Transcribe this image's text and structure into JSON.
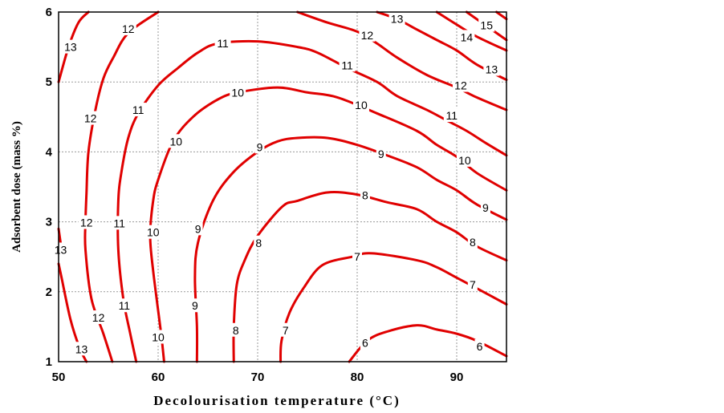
{
  "chart_data": {
    "type": "contour",
    "xlabel": "Decolourisation temperature (°C)",
    "ylabel": "Adsorbent dose (mass %)",
    "xlim": [
      50,
      95
    ],
    "ylim": [
      1,
      6
    ],
    "xticks": [
      "50",
      "60",
      "70",
      "80",
      "90"
    ],
    "yticks": [
      "1",
      "2",
      "3",
      "4",
      "5",
      "6"
    ],
    "grid": true,
    "line_color": "#e00000",
    "contours": [
      {
        "level": "6",
        "points": [
          [
            79.2,
            1.0
          ],
          [
            81,
            1.3
          ],
          [
            83,
            1.43
          ],
          [
            86,
            1.52
          ],
          [
            88,
            1.46
          ],
          [
            90,
            1.4
          ],
          [
            92,
            1.3
          ],
          [
            95,
            1.08
          ]
        ],
        "labels": [
          [
            80.8,
            1.27
          ],
          [
            92.3,
            1.22
          ]
        ]
      },
      {
        "level": "7",
        "points": [
          [
            72.3,
            1.0
          ],
          [
            72.4,
            1.3
          ],
          [
            73.2,
            1.7
          ],
          [
            74.6,
            2.05
          ],
          [
            76.5,
            2.38
          ],
          [
            79.5,
            2.5
          ],
          [
            81.5,
            2.55
          ],
          [
            86,
            2.45
          ],
          [
            88,
            2.35
          ],
          [
            90,
            2.2
          ],
          [
            92,
            2.05
          ],
          [
            95,
            1.82
          ]
        ],
        "labels": [
          [
            72.8,
            1.45
          ],
          [
            80.0,
            2.5
          ],
          [
            91.6,
            2.1
          ]
        ]
      },
      {
        "level": "8",
        "points": [
          [
            67.6,
            1.0
          ],
          [
            67.6,
            1.5
          ],
          [
            67.9,
            2.1
          ],
          [
            68.7,
            2.45
          ],
          [
            70.0,
            2.8
          ],
          [
            72.5,
            3.22
          ],
          [
            74,
            3.3
          ],
          [
            77,
            3.42
          ],
          [
            80,
            3.39
          ],
          [
            83,
            3.28
          ],
          [
            86,
            3.18
          ],
          [
            88,
            3.0
          ],
          [
            90,
            2.85
          ],
          [
            92,
            2.65
          ],
          [
            95,
            2.45
          ]
        ],
        "labels": [
          [
            67.8,
            1.45
          ],
          [
            70.1,
            2.7
          ],
          [
            80.8,
            3.38
          ],
          [
            91.6,
            2.71
          ]
        ]
      },
      {
        "level": "9",
        "points": [
          [
            63.9,
            1.0
          ],
          [
            63.9,
            1.5
          ],
          [
            63.7,
            2.2
          ],
          [
            64.0,
            2.7
          ],
          [
            65.5,
            3.3
          ],
          [
            67.5,
            3.7
          ],
          [
            70,
            4.0
          ],
          [
            72,
            4.15
          ],
          [
            74,
            4.2
          ],
          [
            77,
            4.2
          ],
          [
            80,
            4.1
          ],
          [
            83,
            3.95
          ],
          [
            86,
            3.78
          ],
          [
            88,
            3.6
          ],
          [
            90,
            3.45
          ],
          [
            92,
            3.25
          ],
          [
            95,
            3.03
          ]
        ],
        "labels": [
          [
            63.7,
            1.8
          ],
          [
            64.0,
            2.9
          ],
          [
            70.2,
            4.07
          ],
          [
            82.4,
            3.97
          ],
          [
            92.9,
            3.2
          ]
        ]
      },
      {
        "level": "10",
        "points": [
          [
            60.6,
            1.0
          ],
          [
            60.3,
            1.4
          ],
          [
            59.5,
            2.3
          ],
          [
            59.2,
            2.8
          ],
          [
            59.5,
            3.3
          ],
          [
            60,
            3.6
          ],
          [
            61.5,
            4.15
          ],
          [
            63.5,
            4.5
          ],
          [
            66,
            4.75
          ],
          [
            68,
            4.85
          ],
          [
            72,
            4.92
          ],
          [
            75,
            4.85
          ],
          [
            78,
            4.78
          ],
          [
            82,
            4.55
          ],
          [
            86,
            4.3
          ],
          [
            88,
            4.1
          ],
          [
            90,
            3.93
          ],
          [
            92,
            3.7
          ],
          [
            95,
            3.45
          ]
        ],
        "labels": [
          [
            60.0,
            1.35
          ],
          [
            59.5,
            2.85
          ],
          [
            61.8,
            4.15
          ],
          [
            68.0,
            4.85
          ],
          [
            80.4,
            4.67
          ],
          [
            90.8,
            3.88
          ]
        ]
      },
      {
        "level": "11",
        "points": [
          [
            57.8,
            1.0
          ],
          [
            57.2,
            1.4
          ],
          [
            56.5,
            1.9
          ],
          [
            56.0,
            2.6
          ],
          [
            56.0,
            3.3
          ],
          [
            56.3,
            3.7
          ],
          [
            57.0,
            4.2
          ],
          [
            58,
            4.55
          ],
          [
            60,
            4.95
          ],
          [
            62,
            5.2
          ],
          [
            64,
            5.42
          ],
          [
            66,
            5.55
          ],
          [
            70,
            5.58
          ],
          [
            74,
            5.5
          ],
          [
            76,
            5.42
          ],
          [
            79,
            5.2
          ],
          [
            82,
            5.0
          ],
          [
            84,
            4.8
          ],
          [
            87,
            4.6
          ],
          [
            89,
            4.45
          ],
          [
            91,
            4.3
          ],
          [
            93,
            4.12
          ],
          [
            95,
            3.95
          ]
        ],
        "labels": [
          [
            56.6,
            1.8
          ],
          [
            56.1,
            2.98
          ],
          [
            58.0,
            4.6
          ],
          [
            66.5,
            5.55
          ],
          [
            79.0,
            5.24
          ],
          [
            89.5,
            4.52
          ]
        ]
      },
      {
        "level": "12",
        "points": [
          [
            55.4,
            1.0
          ],
          [
            54.5,
            1.4
          ],
          [
            53.3,
            1.9
          ],
          [
            52.7,
            2.6
          ],
          [
            52.7,
            3.0
          ],
          [
            52.8,
            3.4
          ],
          [
            53.0,
            4.0
          ],
          [
            53.7,
            4.6
          ],
          [
            54.5,
            5.05
          ],
          [
            55.5,
            5.35
          ],
          [
            57,
            5.7
          ],
          [
            60,
            6.0
          ]
        ],
        "labels": [
          [
            54.0,
            1.63
          ],
          [
            52.8,
            2.99
          ],
          [
            53.2,
            4.48
          ],
          [
            57.0,
            5.76
          ]
        ]
      },
      {
        "level": "12",
        "points": [
          [
            74,
            6.0
          ],
          [
            77,
            5.85
          ],
          [
            80,
            5.72
          ],
          [
            82,
            5.55
          ],
          [
            84,
            5.35
          ],
          [
            87,
            5.1
          ],
          [
            90,
            4.92
          ],
          [
            92,
            4.78
          ],
          [
            95,
            4.6
          ]
        ],
        "labels": [
          [
            81.0,
            5.67
          ],
          [
            90.4,
            4.95
          ]
        ]
      },
      {
        "level": "13",
        "points": [
          [
            52.8,
            1.0
          ],
          [
            52.1,
            1.2
          ],
          [
            51.2,
            1.6
          ],
          [
            50.3,
            2.2
          ],
          [
            50.0,
            2.4
          ]
        ],
        "labels": [
          [
            52.3,
            1.18
          ]
        ]
      },
      {
        "level": "13",
        "points": [
          [
            50.0,
            2.9
          ],
          [
            50.3,
            2.6
          ]
        ],
        "labels": [
          [
            50.2,
            2.6
          ]
        ]
      },
      {
        "level": "13",
        "points": [
          [
            50,
            5.0
          ],
          [
            51,
            5.5
          ],
          [
            52,
            5.85
          ],
          [
            53,
            6.0
          ]
        ],
        "labels": [
          [
            51.2,
            5.5
          ]
        ]
      },
      {
        "level": "13",
        "points": [
          [
            82,
            6.0
          ],
          [
            84,
            5.9
          ],
          [
            86,
            5.75
          ],
          [
            88,
            5.6
          ],
          [
            90,
            5.45
          ],
          [
            92,
            5.25
          ],
          [
            95,
            5.03
          ]
        ],
        "labels": [
          [
            84.0,
            5.9
          ],
          [
            93.5,
            5.18
          ]
        ]
      },
      {
        "level": "14",
        "points": [
          [
            88,
            6.0
          ],
          [
            90,
            5.82
          ],
          [
            92,
            5.65
          ],
          [
            95,
            5.45
          ]
        ],
        "labels": [
          [
            91.0,
            5.64
          ]
        ]
      },
      {
        "level": "15",
        "points": [
          [
            91,
            6.0
          ],
          [
            93,
            5.8
          ],
          [
            95,
            5.6
          ]
        ],
        "labels": [
          [
            93.0,
            5.81
          ]
        ]
      },
      {
        "level": "",
        "points": [
          [
            94,
            6.0
          ],
          [
            95,
            5.9
          ]
        ],
        "labels": []
      }
    ]
  }
}
